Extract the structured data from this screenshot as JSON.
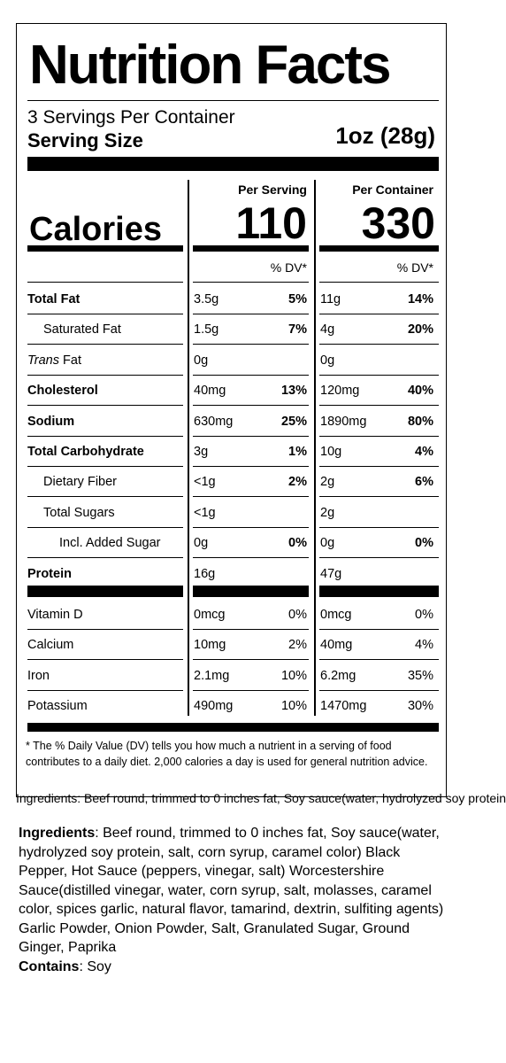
{
  "title": "Nutrition Facts",
  "servings_per_container": "3 Servings Per Container",
  "serving_size_label": "Serving Size",
  "serving_size_value": "1oz (28g)",
  "columns": {
    "per_serving": "Per Serving",
    "per_container": "Per Container"
  },
  "calories_label": "Calories",
  "calories_per_serving": "110",
  "calories_per_container": "330",
  "dv_header": "% DV*",
  "nutrients": [
    {
      "name": "Total Fat",
      "ps_amt": "3.5g",
      "ps_dv": "5%",
      "pc_amt": "11g",
      "pc_dv": "14%"
    },
    {
      "name": "Saturated Fat",
      "ps_amt": "1.5g",
      "ps_dv": "7%",
      "pc_amt": "4g",
      "pc_dv": "20%"
    },
    {
      "name_italic": "Trans",
      "name_rest": " Fat",
      "ps_amt": "0g",
      "ps_dv": "",
      "pc_amt": "0g",
      "pc_dv": ""
    },
    {
      "name": "Cholesterol",
      "ps_amt": "40mg",
      "ps_dv": "13%",
      "pc_amt": "120mg",
      "pc_dv": "40%"
    },
    {
      "name": "Sodium",
      "ps_amt": "630mg",
      "ps_dv": "25%",
      "pc_amt": "1890mg",
      "pc_dv": "80%"
    },
    {
      "name": "Total Carbohydrate",
      "ps_amt": "3g",
      "ps_dv": "1%",
      "pc_amt": "10g",
      "pc_dv": "4%"
    },
    {
      "name": "Dietary Fiber",
      "ps_amt": "<1g",
      "ps_dv": "2%",
      "pc_amt": "2g",
      "pc_dv": "6%"
    },
    {
      "name": "Total Sugars",
      "ps_amt": "<1g",
      "ps_dv": "",
      "pc_amt": "2g",
      "pc_dv": ""
    },
    {
      "name": "Incl. Added Sugar",
      "ps_amt": "0g",
      "ps_dv": "0%",
      "pc_amt": "0g",
      "pc_dv": "0%"
    },
    {
      "name": "Protein",
      "ps_amt": "16g",
      "ps_dv": "",
      "pc_amt": "47g",
      "pc_dv": ""
    }
  ],
  "vitamins": [
    {
      "name": "Vitamin D",
      "ps_amt": "0mcg",
      "ps_dv": "0%",
      "pc_amt": "0mcg",
      "pc_dv": "0%"
    },
    {
      "name": "Calcium",
      "ps_amt": "10mg",
      "ps_dv": "2%",
      "pc_amt": "40mg",
      "pc_dv": "4%"
    },
    {
      "name": "Iron",
      "ps_amt": "2.1mg",
      "ps_dv": "10%",
      "pc_amt": "6.2mg",
      "pc_dv": "35%"
    },
    {
      "name": "Potassium",
      "ps_amt": "490mg",
      "ps_dv": "10%",
      "pc_amt": "1470mg",
      "pc_dv": "30%"
    }
  ],
  "footnote": "* The % Daily Value (DV) tells you how much a nutrient in a serving of food contributes to a daily diet. 2,000 calories a day is used for general nutrition advice.",
  "ghost_text": "Ingredients: Beef round, trimmed to 0 inches fat, Soy sauce(water, hydrolyzed soy protein",
  "ingredients_label": "Ingredients",
  "ingredients_text": ": Beef round, trimmed to 0 inches fat,  Soy sauce(water, hydrolyzed soy protein, salt, corn syrup, caramel color) Black Pepper, Hot Sauce (peppers, vinegar, salt) Worcestershire Sauce(distilled vinegar, water, corn syrup, salt, molasses, caramel color, spices garlic, natural flavor, tamarind, dextrin, sulfiting agents) Garlic Powder, Onion Powder, Salt, Granulated Sugar, Ground Ginger, Paprika",
  "contains_label": "Contains",
  "contains_text": ":  Soy"
}
